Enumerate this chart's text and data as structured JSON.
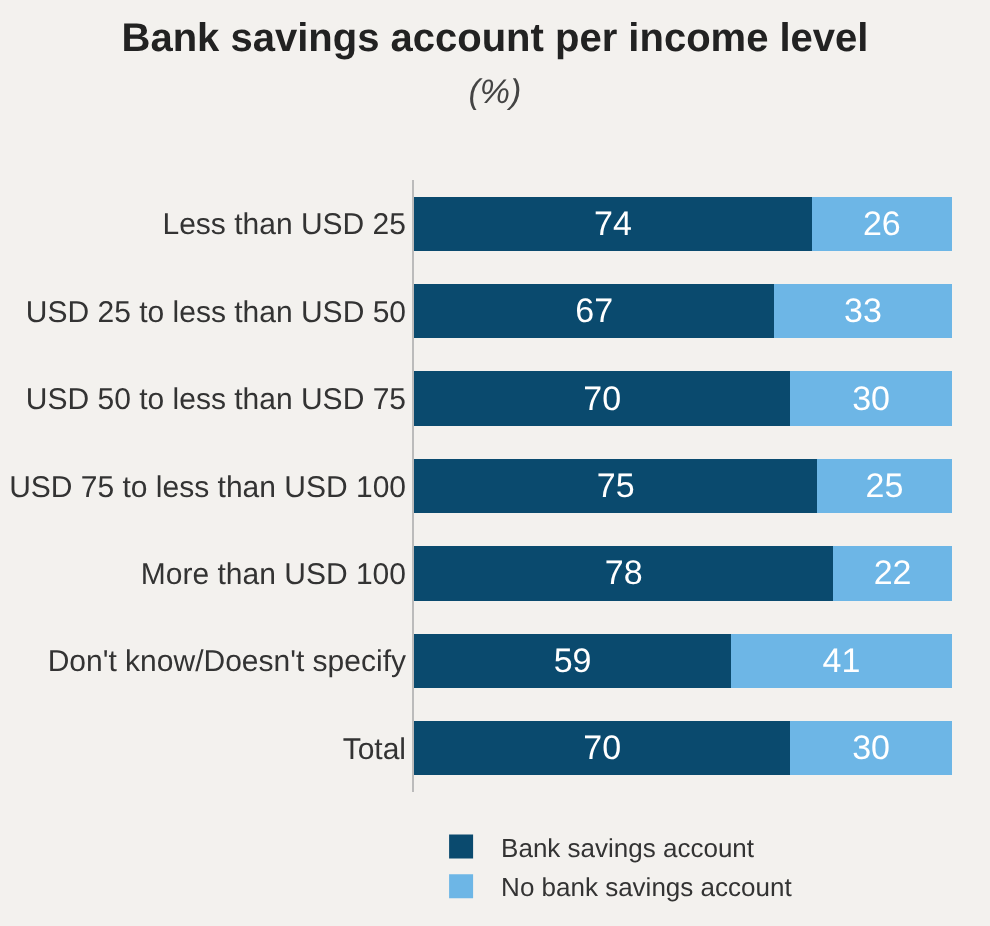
{
  "chart_data": {
    "type": "bar",
    "orientation": "horizontal",
    "stacked": true,
    "title": "Bank savings account per income level",
    "subtitle": "(%)",
    "categories": [
      "Less than USD 25",
      "USD 25 to less than USD 50",
      "USD 50 to less than USD 75",
      "USD 75 to less than USD 100",
      "More than USD 100",
      "Don't know/Doesn't specify",
      "Total"
    ],
    "series": [
      {
        "name": "Bank savings account",
        "color": "#0a4a6e",
        "values": [
          74,
          67,
          70,
          75,
          78,
          59,
          70
        ]
      },
      {
        "name": "No bank savings account",
        "color": "#6db6e6",
        "values": [
          26,
          33,
          30,
          25,
          22,
          41,
          30
        ]
      }
    ],
    "data_labels": true,
    "legend": "bottom",
    "tick_labels": "y",
    "grid": false
  }
}
